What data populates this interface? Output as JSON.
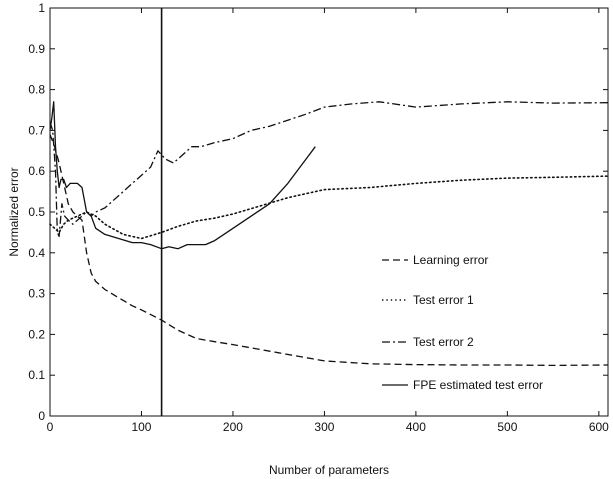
{
  "chart_data": {
    "type": "line",
    "title": "",
    "xlabel": "Number of parameters",
    "ylabel": "Normalized error",
    "xlim": [
      0,
      610
    ],
    "ylim": [
      0,
      1
    ],
    "xticks": [
      "0",
      "100",
      "200",
      "300",
      "400",
      "500",
      "600"
    ],
    "yticks": [
      "0",
      "0.1",
      "0.2",
      "0.3",
      "0.4",
      "0.5",
      "0.6",
      "0.7",
      "0.8",
      "0.9",
      "1"
    ],
    "grid": false,
    "legend_position": "right",
    "vertical_marker_x": 122,
    "series": [
      {
        "name": "Learning error",
        "style": "dashed",
        "x": [
          0,
          5,
          10,
          15,
          20,
          25,
          30,
          35,
          40,
          45,
          50,
          60,
          75,
          90,
          100,
          122,
          140,
          160,
          180,
          200,
          250,
          300,
          350,
          400,
          450,
          500,
          550,
          610
        ],
        "y": [
          0.69,
          0.66,
          0.62,
          0.57,
          0.52,
          0.5,
          0.49,
          0.48,
          0.4,
          0.35,
          0.33,
          0.31,
          0.29,
          0.27,
          0.26,
          0.235,
          0.21,
          0.19,
          0.182,
          0.175,
          0.155,
          0.135,
          0.128,
          0.126,
          0.125,
          0.125,
          0.124,
          0.125
        ]
      },
      {
        "name": "Test error 1",
        "style": "dotted",
        "x": [
          0,
          5,
          10,
          15,
          20,
          30,
          40,
          50,
          60,
          80,
          100,
          122,
          140,
          160,
          180,
          200,
          230,
          260,
          290,
          300,
          350,
          400,
          450,
          500,
          550,
          610
        ],
        "y": [
          0.47,
          0.46,
          0.45,
          0.47,
          0.48,
          0.49,
          0.5,
          0.49,
          0.47,
          0.445,
          0.435,
          0.45,
          0.465,
          0.478,
          0.485,
          0.495,
          0.515,
          0.535,
          0.55,
          0.555,
          0.56,
          0.57,
          0.578,
          0.583,
          0.585,
          0.588
        ]
      },
      {
        "name": "Test error 2",
        "style": "dashdot",
        "x": [
          0,
          3,
          6,
          8,
          10,
          13,
          16,
          20,
          25,
          30,
          35,
          40,
          45,
          50,
          60,
          70,
          80,
          90,
          100,
          110,
          118,
          122,
          126,
          135,
          145,
          155,
          165,
          180,
          200,
          220,
          240,
          260,
          280,
          300,
          330,
          360,
          400,
          450,
          500,
          550,
          610
        ],
        "y": [
          0.72,
          0.7,
          0.6,
          0.45,
          0.44,
          0.52,
          0.49,
          0.48,
          0.47,
          0.48,
          0.49,
          0.5,
          0.49,
          0.5,
          0.51,
          0.53,
          0.55,
          0.57,
          0.59,
          0.61,
          0.65,
          0.64,
          0.63,
          0.62,
          0.64,
          0.66,
          0.66,
          0.67,
          0.68,
          0.7,
          0.71,
          0.725,
          0.74,
          0.757,
          0.765,
          0.77,
          0.757,
          0.765,
          0.77,
          0.767,
          0.768
        ]
      },
      {
        "name": "FPE estimated test error",
        "style": "solid",
        "x": [
          0,
          2,
          4,
          6,
          8,
          10,
          12,
          15,
          18,
          22,
          25,
          30,
          35,
          40,
          45,
          50,
          60,
          75,
          90,
          100,
          110,
          122,
          130,
          140,
          150,
          160,
          170,
          180,
          200,
          220,
          240,
          260,
          280,
          290
        ],
        "y": [
          0.7,
          0.73,
          0.77,
          0.66,
          0.6,
          0.56,
          0.58,
          0.58,
          0.56,
          0.57,
          0.57,
          0.57,
          0.56,
          0.5,
          0.49,
          0.46,
          0.445,
          0.435,
          0.425,
          0.425,
          0.42,
          0.41,
          0.415,
          0.41,
          0.42,
          0.42,
          0.42,
          0.43,
          0.46,
          0.49,
          0.52,
          0.57,
          0.63,
          0.66
        ]
      }
    ]
  }
}
